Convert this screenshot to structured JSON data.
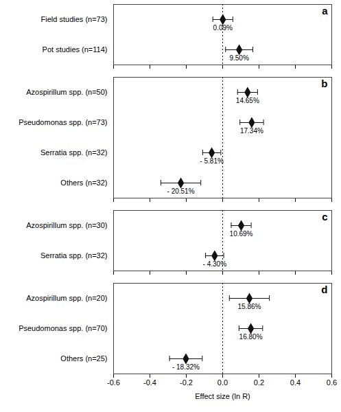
{
  "chart_data": [
    {
      "type": "forest",
      "title": "a",
      "categories": [
        "Field studies (n=73)",
        "Pot studies (n=114)"
      ],
      "values": [
        0.001,
        0.091
      ],
      "error_low": [
        0.055,
        0.075
      ],
      "error_high": [
        0.055,
        0.075
      ],
      "annotations": [
        "0.09%",
        "9.50%"
      ],
      "xlim": [
        -0.6,
        0.6
      ],
      "xticks": [
        -0.6,
        -0.4,
        -0.2,
        {
          "value": 0,
          "label": "0.0"
        },
        0.2,
        0.4,
        0.6
      ],
      "reference_x": 0,
      "color": "#111111",
      "marker": "diamond",
      "grid": false,
      "tick_labels": "y"
    },
    {
      "type": "forest",
      "title": "b",
      "categories": [
        "Azospirillum spp. (n=50)",
        "Pseudomonas spp. (n=73)",
        "Serratia spp. (n=32)",
        "Others (n=32)"
      ],
      "values": [
        0.137,
        0.16,
        -0.06,
        -0.23
      ],
      "error_low": [
        0.055,
        0.065,
        0.05,
        0.11
      ],
      "error_high": [
        0.055,
        0.065,
        0.05,
        0.11
      ],
      "annotations": [
        "14.65%",
        "17.34%",
        "- 5.81%",
        "- 20.51%"
      ],
      "xlim": [
        -0.6,
        0.6
      ],
      "xticks": [
        -0.6,
        -0.4,
        -0.2,
        {
          "value": 0,
          "label": "0.0"
        },
        0.2,
        0.4,
        0.6
      ],
      "reference_x": 0,
      "color": "#111111",
      "marker": "diamond",
      "grid": false,
      "tick_labels": "y"
    },
    {
      "type": "forest",
      "title": "c",
      "categories": [
        "Azospirillum spp. (n=30)",
        "Serratia spp. (n=32)"
      ],
      "values": [
        0.102,
        -0.044
      ],
      "error_low": [
        0.055,
        0.05
      ],
      "error_high": [
        0.055,
        0.05
      ],
      "annotations": [
        "10.69%",
        "- 4.30%"
      ],
      "xlim": [
        -0.6,
        0.6
      ],
      "xticks": [
        -0.6,
        -0.4,
        -0.2,
        {
          "value": 0,
          "label": "0.0"
        },
        0.2,
        0.4,
        0.6
      ],
      "reference_x": 0,
      "color": "#111111",
      "marker": "diamond",
      "grid": false,
      "tick_labels": "y"
    },
    {
      "type": "forest",
      "title": "d",
      "categories": [
        "Azospirillum spp. (n=20)",
        "Pseudomonas spp. (n=70)",
        "Others (n=25)"
      ],
      "values": [
        0.147,
        0.155,
        -0.202
      ],
      "error_low": [
        0.11,
        0.065,
        0.09
      ],
      "error_high": [
        0.11,
        0.065,
        0.09
      ],
      "annotations": [
        "15.86%",
        "16.80%",
        "- 18.32%"
      ],
      "xlim": [
        -0.6,
        0.6
      ],
      "xticks": [
        -0.6,
        -0.4,
        -0.2,
        {
          "value": 0,
          "label": "0.0"
        },
        0.2,
        0.4,
        0.6
      ],
      "xlabel": "Effect size (ln R)",
      "reference_x": 0,
      "color": "#111111",
      "marker": "diamond",
      "grid": false
    }
  ]
}
